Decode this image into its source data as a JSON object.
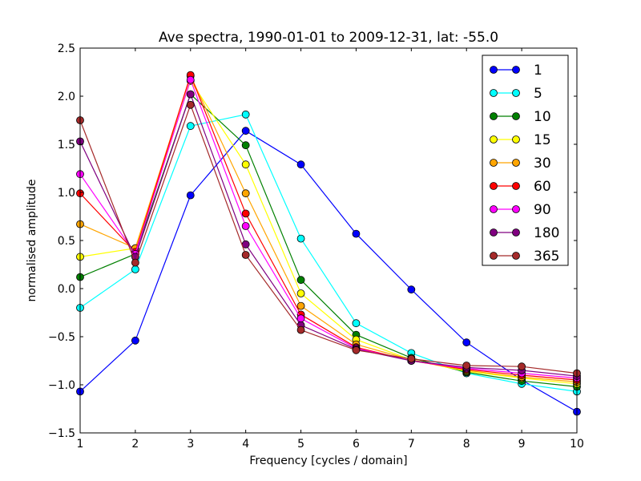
{
  "chart_data": {
    "type": "line",
    "title": "Ave spectra, 1990-01-01 to 2009-12-31, lat: -55.0",
    "xlabel": "Frequency [cycles / domain]",
    "ylabel": "normalised amplitude",
    "xlim": [
      1,
      10
    ],
    "ylim": [
      -1.5,
      2.5
    ],
    "x": [
      1,
      2,
      3,
      4,
      5,
      6,
      7,
      8,
      9,
      10
    ],
    "xticks": [
      "1",
      "2",
      "3",
      "4",
      "5",
      "6",
      "7",
      "8",
      "9",
      "10"
    ],
    "yticks": [
      "−1.5",
      "−1.0",
      "−0.5",
      "0.0",
      "0.5",
      "1.0",
      "1.5",
      "2.0",
      "2.5"
    ],
    "grid": false,
    "legend_position": "top-right",
    "series": [
      {
        "name": "1",
        "color": "#0000ff",
        "values": [
          -1.07,
          -0.54,
          0.97,
          1.64,
          1.29,
          0.57,
          -0.01,
          -0.56,
          -0.95,
          -1.28
        ]
      },
      {
        "name": "5",
        "color": "#00ffff",
        "values": [
          -0.2,
          0.2,
          1.69,
          1.81,
          0.52,
          -0.36,
          -0.67,
          -0.88,
          -0.99,
          -1.07
        ]
      },
      {
        "name": "10",
        "color": "#008000",
        "values": [
          0.12,
          0.36,
          2.02,
          1.49,
          0.09,
          -0.48,
          -0.72,
          -0.87,
          -0.96,
          -1.02
        ]
      },
      {
        "name": "15",
        "color": "#ffff00",
        "values": [
          0.33,
          0.42,
          2.16,
          1.29,
          -0.05,
          -0.53,
          -0.74,
          -0.86,
          -0.93,
          -0.99
        ]
      },
      {
        "name": "30",
        "color": "#ffa500",
        "values": [
          0.67,
          0.42,
          2.21,
          0.99,
          -0.18,
          -0.58,
          -0.74,
          -0.85,
          -0.92,
          -0.97
        ]
      },
      {
        "name": "60",
        "color": "#ff0000",
        "values": [
          0.99,
          0.38,
          2.22,
          0.78,
          -0.27,
          -0.61,
          -0.75,
          -0.84,
          -0.9,
          -0.95
        ]
      },
      {
        "name": "90",
        "color": "#ff00ff",
        "values": [
          1.19,
          0.36,
          2.17,
          0.65,
          -0.31,
          -0.62,
          -0.75,
          -0.83,
          -0.88,
          -0.93
        ]
      },
      {
        "name": "180",
        "color": "#800080",
        "values": [
          1.53,
          0.33,
          2.02,
          0.46,
          -0.38,
          -0.63,
          -0.75,
          -0.82,
          -0.85,
          -0.91
        ]
      },
      {
        "name": "365",
        "color": "#a52a2a",
        "values": [
          1.75,
          0.27,
          1.91,
          0.35,
          -0.43,
          -0.64,
          -0.73,
          -0.8,
          -0.81,
          -0.88
        ]
      }
    ]
  }
}
